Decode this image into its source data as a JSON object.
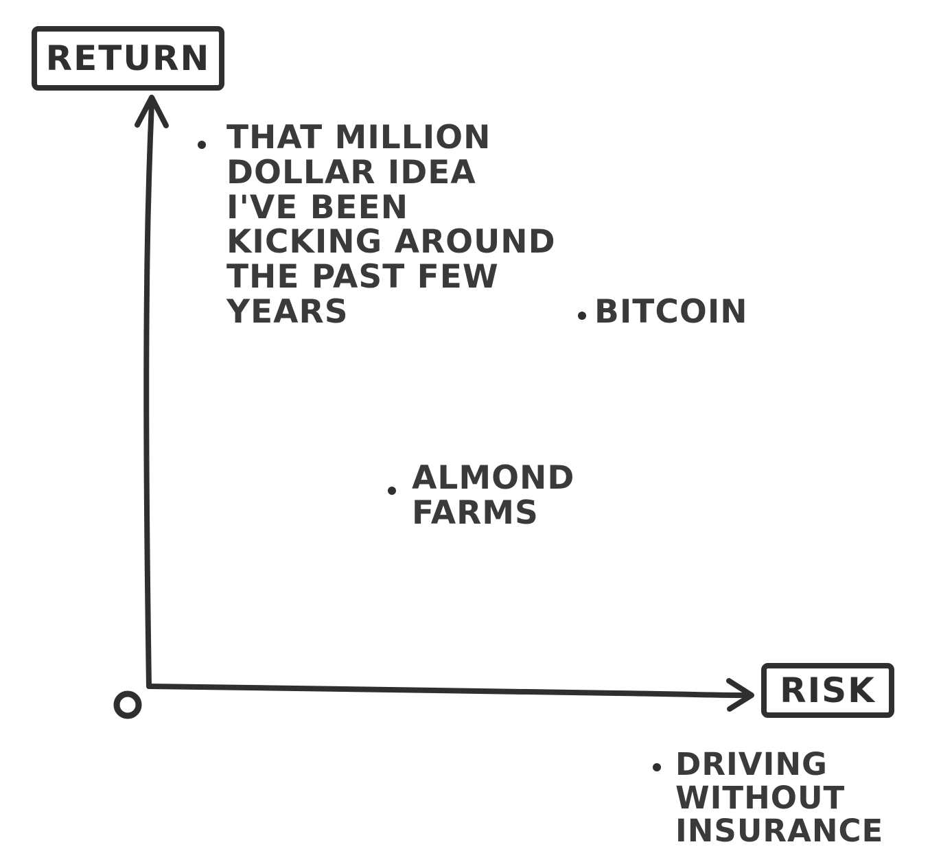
{
  "diagram": {
    "y_axis_label": "RETURN",
    "x_axis_label": "RISK",
    "origin_label": "0",
    "points": [
      {
        "label": "THAT MILLION\nDOLLAR IDEA\nI'VE BEEN\nKICKING AROUND\nTHE PAST FEW\nYEARS"
      },
      {
        "label": "BITCOIN"
      },
      {
        "label": "ALMOND\nFARMS"
      },
      {
        "label": "DRIVING\nWITHOUT\nINSURANCE"
      }
    ]
  }
}
